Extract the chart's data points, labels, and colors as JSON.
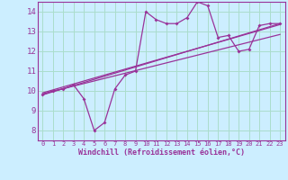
{
  "title": "",
  "xlabel": "Windchill (Refroidissement éolien,°C)",
  "bg_color": "#cceeff",
  "line_color": "#993399",
  "grid_color": "#aaddcc",
  "xlim": [
    -0.5,
    23.5
  ],
  "ylim": [
    7.5,
    14.5
  ],
  "xticks": [
    0,
    1,
    2,
    3,
    4,
    5,
    6,
    7,
    8,
    9,
    10,
    11,
    12,
    13,
    14,
    15,
    16,
    17,
    18,
    19,
    20,
    21,
    22,
    23
  ],
  "yticks": [
    8,
    9,
    10,
    11,
    12,
    13,
    14
  ],
  "jagged_x": [
    0,
    1,
    2,
    3,
    4,
    5,
    6,
    7,
    8,
    9,
    10,
    11,
    12,
    13,
    14,
    15,
    16,
    17,
    18,
    19,
    20,
    21,
    22,
    23
  ],
  "jagged_y": [
    9.8,
    10.0,
    10.1,
    10.3,
    9.6,
    8.0,
    8.4,
    10.1,
    10.8,
    11.0,
    14.0,
    13.6,
    13.4,
    13.4,
    13.7,
    14.5,
    14.3,
    12.7,
    12.8,
    12.0,
    12.1,
    13.3,
    13.4,
    13.4
  ],
  "line1_x": [
    0,
    23
  ],
  "line1_y": [
    9.8,
    13.4
  ],
  "line2_x": [
    0,
    23
  ],
  "line2_y": [
    9.85,
    12.85
  ],
  "line3_x": [
    0,
    23
  ],
  "line3_y": [
    9.9,
    13.35
  ]
}
